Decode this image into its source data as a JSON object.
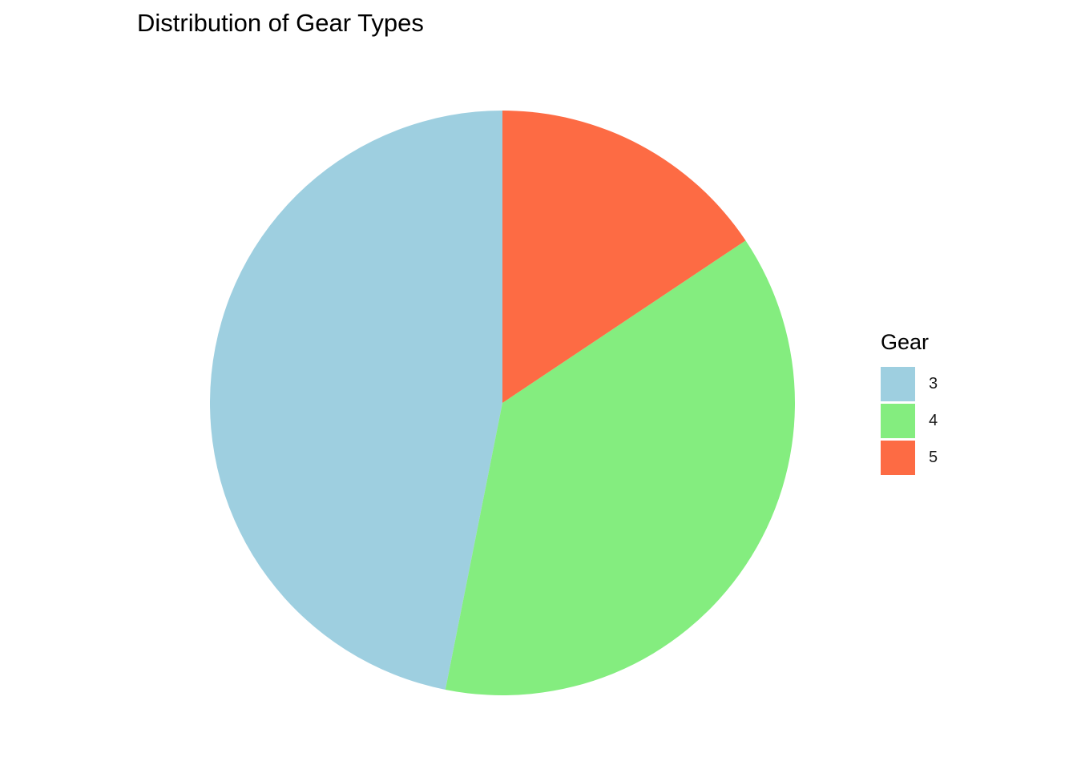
{
  "chart_data": {
    "type": "pie",
    "title": "Distribution of Gear Types",
    "legend_title": "Gear",
    "legend_position": "right",
    "categories": [
      "3",
      "4",
      "5"
    ],
    "values": [
      15,
      12,
      5
    ],
    "colors": [
      "#9ECFE0",
      "#84ED7F",
      "#FD6B44"
    ],
    "start_angle": "12 o'clock",
    "direction": "counter-clockwise"
  }
}
